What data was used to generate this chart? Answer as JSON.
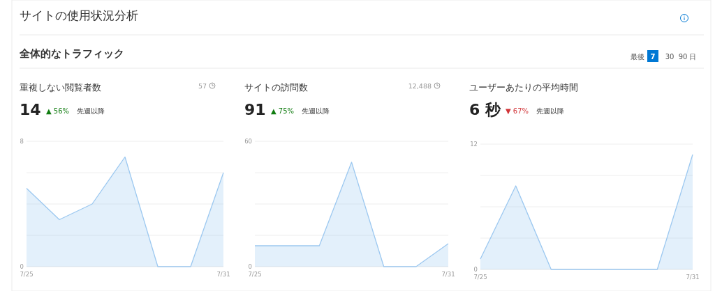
{
  "chart_data": [
    {
      "type": "other",
      "title": "サイトの使用状況分析",
      "subtitle": "全体的なトラフィック",
      "annotations": [
        "最後",
        "7",
        "30",
        "90",
        "日"
      ]
    },
    {
      "type": "area",
      "title": "重複しない閲覧者数",
      "annotations": [
        "57",
        "14",
        "▲ 56%",
        "先週以降"
      ],
      "categories": [
        "7/25",
        null,
        null,
        null,
        null,
        null,
        "7/31"
      ],
      "series": [
        {
          "color": "#9cc8f0",
          "values": [
            5,
            3,
            4,
            7,
            0,
            0,
            6
          ]
        }
      ],
      "ylim": [
        0,
        8
      ],
      "yticks": [
        0,
        {
          "value": 2,
          "label": null
        },
        {
          "value": 4,
          "label": null
        },
        {
          "value": 6,
          "label": null
        },
        8
      ],
      "grid": "y"
    },
    {
      "type": "area",
      "title": "サイトの訪問数",
      "annotations": [
        "12,488",
        "91",
        "▲ 75%",
        "先週以降"
      ],
      "categories": [
        "7/25",
        null,
        null,
        null,
        null,
        null,
        "7/31"
      ],
      "series": [
        {
          "color": "#9cc8f0",
          "values": [
            10,
            10,
            10,
            50,
            0,
            0,
            11
          ]
        }
      ],
      "ylim": [
        0,
        60
      ],
      "yticks": [
        0,
        {
          "value": 15,
          "label": null
        },
        {
          "value": 30,
          "label": null
        },
        {
          "value": 45,
          "label": null
        },
        60
      ],
      "grid": "y"
    },
    {
      "type": "area",
      "title": "ユーザーあたりの平均時間",
      "annotations": [
        null,
        "6 秒",
        "▼ 67%",
        "先週以降"
      ],
      "categories": [
        "7/25",
        null,
        null,
        null,
        null,
        null,
        "7/31"
      ],
      "series": [
        {
          "color": "#9cc8f0",
          "values": [
            1,
            8,
            0,
            0,
            0,
            0,
            11
          ]
        }
      ],
      "ylim": [
        0,
        12
      ],
      "yticks": [
        0,
        {
          "value": 3,
          "label": null
        },
        {
          "value": 6,
          "label": null
        },
        {
          "value": 9,
          "label": null
        },
        12
      ],
      "grid": "y"
    }
  ]
}
